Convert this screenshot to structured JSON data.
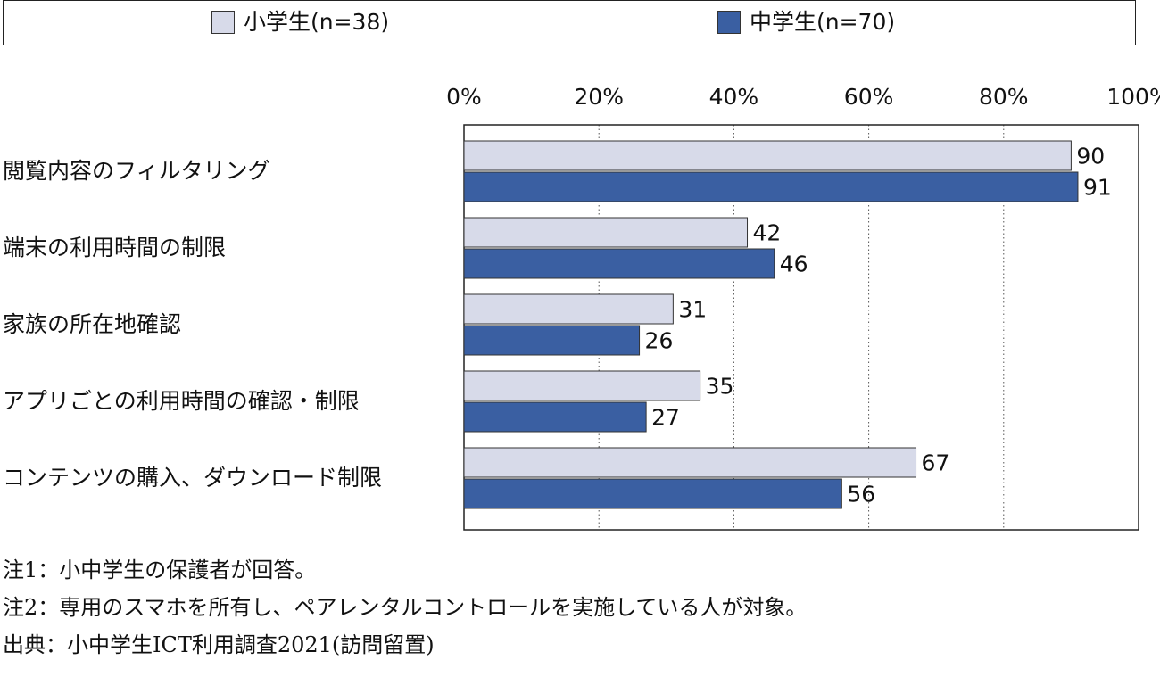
{
  "legend": {
    "items": [
      {
        "label": "小学生(n=38)",
        "color": "#d7dae9"
      },
      {
        "label": "中学生(n=70)",
        "color": "#3a5fa2"
      }
    ]
  },
  "chart_data": {
    "type": "bar",
    "orientation": "horizontal",
    "categories": [
      "閲覧内容のフィルタリング",
      "端末の利用時間の制限",
      "家族の所在地確認",
      "アプリごとの利用時間の確認・制限",
      "コンテンツの購入、ダウンロード制限"
    ],
    "series": [
      {
        "name": "小学生(n=38)",
        "color": "#d7dae9",
        "values": [
          90,
          42,
          31,
          35,
          67
        ]
      },
      {
        "name": "中学生(n=70)",
        "color": "#3a5fa2",
        "values": [
          91,
          46,
          26,
          27,
          56
        ]
      }
    ],
    "xlim": [
      0,
      100
    ],
    "xticks": [
      0,
      20,
      40,
      60,
      80,
      100
    ],
    "xtick_labels": [
      "0%",
      "20%",
      "40%",
      "60%",
      "80%",
      "100%"
    ],
    "grid": "vertical-dotted",
    "legend": "top"
  },
  "notes": [
    "注1：小中学生の保護者が回答。",
    "注2：専用のスマホを所有し、ペアレンタルコントロールを実施している人が対象。",
    "出典：小中学生ICT利用調査2021(訪問留置)"
  ]
}
